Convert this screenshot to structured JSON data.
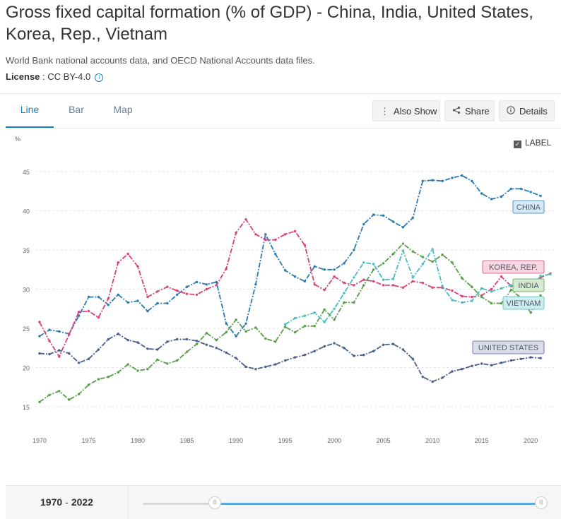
{
  "header": {
    "title": "Gross fixed capital formation (% of GDP) - China, India, United States, Korea, Rep., Vietnam",
    "source": "World Bank national accounts data, and OECD National Accounts data files.",
    "license_label": "License",
    "license_sep": " : ",
    "license_value": "CC BY-4.0",
    "info_icon": "i"
  },
  "tabs": [
    {
      "label": "Line",
      "active": true
    },
    {
      "label": "Bar",
      "active": false
    },
    {
      "label": "Map",
      "active": false
    }
  ],
  "actions": {
    "also_show": "Also Show",
    "share": "Share",
    "details": "Details"
  },
  "label_toggle": {
    "label": "LABEL",
    "checked": true
  },
  "range": {
    "start": "1970",
    "sep": "-",
    "end": "2022"
  },
  "chart_data": {
    "type": "line",
    "title": "Gross fixed capital formation (% of GDP)",
    "ylabel": "%",
    "xlabel": "",
    "xlim": [
      1970,
      2022
    ],
    "ylim": [
      15,
      45
    ],
    "x_ticks": [
      "1970",
      "1975",
      "1980",
      "1985",
      "1990",
      "1995",
      "2000",
      "2005",
      "2010",
      "2015",
      "2020"
    ],
    "y_ticks": [
      "15",
      "20",
      "25",
      "30",
      "35",
      "40",
      "45"
    ],
    "grid": true,
    "series": [
      {
        "name": "CHINA",
        "label": "CHINA",
        "color": "#2c7bb0",
        "label_bg": "#d6e8f5",
        "start": 1970,
        "values": [
          24.0,
          24.8,
          24.6,
          24.3,
          26.6,
          29.0,
          29.0,
          28.0,
          29.3,
          28.3,
          28.5,
          27.2,
          28.2,
          28.2,
          29.3,
          30.3,
          30.9,
          30.6,
          30.9,
          25.6,
          24.0,
          25.6,
          30.6,
          37.0,
          34.5,
          32.4,
          31.6,
          31.0,
          32.9,
          32.5,
          32.5,
          33.3,
          35.0,
          38.3,
          39.5,
          39.4,
          38.6,
          37.9,
          39.1,
          43.8,
          43.9,
          43.8,
          44.2,
          44.5,
          43.8,
          42.2,
          41.5,
          41.8,
          42.8,
          42.8,
          42.4,
          41.9
        ]
      },
      {
        "name": "KOREA, REP.",
        "label": "KOREA, REP.",
        "color": "#d6427a",
        "label_bg": "#fad5e2",
        "start": 1970,
        "values": [
          25.8,
          23.4,
          21.4,
          24.2,
          27.1,
          27.2,
          26.4,
          28.8,
          33.4,
          34.5,
          32.9,
          29.0,
          29.7,
          30.3,
          29.8,
          29.4,
          29.3,
          30.0,
          30.5,
          32.6,
          37.2,
          38.9,
          37.0,
          36.3,
          36.3,
          37.0,
          37.4,
          35.6,
          30.6,
          29.9,
          31.6,
          30.8,
          30.5,
          31.2,
          31.0,
          30.5,
          30.5,
          30.2,
          31.0,
          30.8,
          30.2,
          30.2,
          29.8,
          29.1,
          29.0,
          29.2,
          30.0,
          31.6,
          30.4,
          30.3,
          30.5,
          31.5,
          32.0
        ]
      },
      {
        "name": "INDIA",
        "label": "INDIA",
        "color": "#5a9e4a",
        "label_bg": "#d7ebd2",
        "start": 1970,
        "values": [
          15.6,
          16.5,
          17.0,
          15.9,
          16.6,
          17.8,
          18.5,
          18.8,
          19.4,
          20.4,
          19.6,
          19.8,
          21.0,
          20.5,
          20.9,
          22.0,
          23.0,
          24.4,
          23.5,
          24.5,
          26.1,
          24.6,
          25.1,
          23.7,
          23.3,
          25.2,
          24.5,
          25.3,
          25.3,
          27.4,
          26.1,
          28.3,
          28.3,
          30.5,
          32.5,
          33.3,
          34.5,
          35.8,
          34.8,
          34.1,
          33.5,
          34.4,
          33.4,
          31.4,
          30.3,
          29.0,
          28.2,
          28.2,
          29.9,
          28.9,
          27.0,
          29.2
        ]
      },
      {
        "name": "VIETNAM",
        "label": "VIETNAM",
        "color": "#4bbcc4",
        "label_bg": "#cfecef",
        "start": 1995,
        "values": [
          25.5,
          26.3,
          26.6,
          27.0,
          25.8,
          27.5,
          29.5,
          31.5,
          33.4,
          33.2,
          31.2,
          31.3,
          34.9,
          31.5,
          33.2,
          35.1,
          30.4,
          28.6,
          28.3,
          28.5,
          30.1,
          29.7,
          30.1,
          30.5,
          29.8,
          29.9,
          31.7,
          31.9
        ]
      },
      {
        "name": "UNITED STATES",
        "label": "UNITED STATES",
        "color": "#4a5f8c",
        "label_bg": "#dcdfe9",
        "start": 1970,
        "values": [
          21.8,
          21.7,
          22.2,
          21.8,
          20.6,
          21.1,
          22.3,
          23.6,
          24.3,
          23.5,
          23.2,
          22.4,
          22.3,
          23.3,
          23.6,
          23.6,
          23.4,
          22.9,
          22.5,
          21.9,
          21.2,
          20.1,
          19.8,
          20.1,
          20.4,
          20.9,
          21.3,
          21.6,
          22.1,
          22.7,
          23.1,
          22.5,
          21.5,
          21.6,
          22.1,
          22.9,
          23.0,
          22.3,
          21.1,
          18.8,
          18.2,
          18.7,
          19.5,
          19.8,
          20.2,
          20.5,
          20.3,
          20.6,
          20.9,
          21.1,
          21.3,
          21.2
        ]
      }
    ]
  }
}
